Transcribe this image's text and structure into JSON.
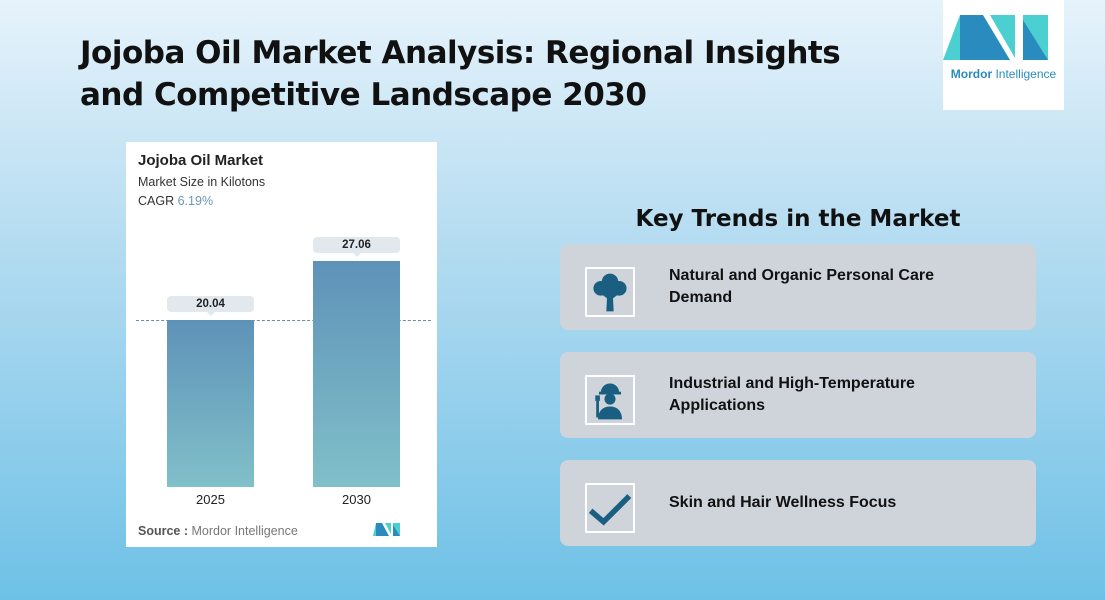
{
  "title": "Jojoba Oil Market Analysis: Regional Insights and Competitive Landscape 2030",
  "logo": {
    "brand": "Mordor",
    "suffix": "Intelligence"
  },
  "chart_data": {
    "type": "bar",
    "title": "Jojoba Oil Market",
    "subtitle": "Market Size in Kilotons",
    "cagr_label": "CAGR",
    "cagr": "6.19%",
    "categories": [
      "2025",
      "2030"
    ],
    "values": [
      20.04,
      27.06
    ],
    "value_labels": [
      "20.04",
      "27.06"
    ],
    "reference_line": "dashed at 2025 value",
    "colors": {
      "bar_top": "#5f92b8",
      "bar_bottom": "#80c0c9"
    },
    "source_label": "Source :",
    "source": "Mordor Intelligence"
  },
  "trends": {
    "heading": "Key Trends in the Market",
    "items": [
      {
        "label": "Natural and Organic Personal Care Demand",
        "icon": "tree-icon"
      },
      {
        "label": "Industrial and High-Temperature Applications",
        "icon": "worker-plug-icon"
      },
      {
        "label": "Skin and Hair Wellness Focus",
        "icon": "checkmark-icon"
      }
    ]
  },
  "colors": {
    "icon": "#1a5f82",
    "card": "#cfd4da"
  }
}
